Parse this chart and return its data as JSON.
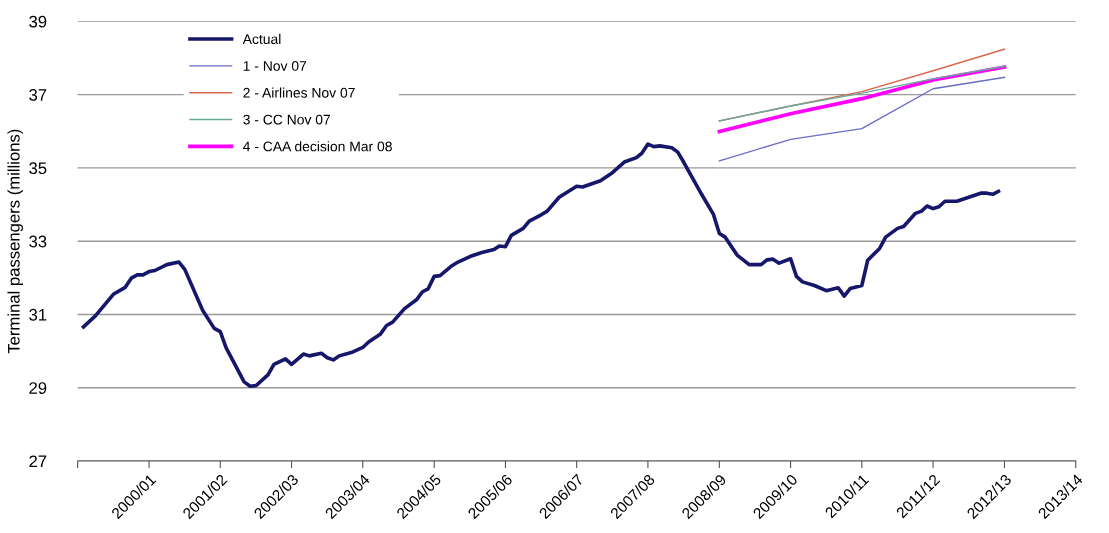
{
  "chart_data": {
    "type": "line",
    "ylabel": "Terminal passengers (millions)",
    "xlim": [
      "1999-04",
      "2013-04"
    ],
    "xticks": [
      {
        "value": "1999-04",
        "label": null
      },
      {
        "value": "2000-04",
        "label": "2000/01"
      },
      {
        "value": "2001-04",
        "label": "2001/02"
      },
      {
        "value": "2002-04",
        "label": "2002/03"
      },
      {
        "value": "2003-04",
        "label": "2003/04"
      },
      {
        "value": "2004-04",
        "label": "2004/05"
      },
      {
        "value": "2005-04",
        "label": "2005/06"
      },
      {
        "value": "2006-04",
        "label": "2006/07"
      },
      {
        "value": "2007-04",
        "label": "2007/08"
      },
      {
        "value": "2008-04",
        "label": "2008/09"
      },
      {
        "value": "2009-04",
        "label": "2009/10"
      },
      {
        "value": "2010-04",
        "label": "2010/11"
      },
      {
        "value": "2011-04",
        "label": "2011/12"
      },
      {
        "value": "2012-04",
        "label": "2012/13"
      },
      {
        "value": "2013-04",
        "label": "2013/14"
      }
    ],
    "ylim": [
      27,
      39
    ],
    "yticks": [
      27,
      29,
      31,
      33,
      35,
      37,
      39
    ],
    "grid": "y",
    "legend": "top left",
    "marker": "none",
    "line_style": "solid",
    "series": [
      {
        "name": "Actual",
        "color": "#16166b",
        "x": [
          "1999-05",
          "1999-07",
          "1999-10",
          "1999-12",
          "2000-01",
          "2000-02",
          "2000-03",
          "2000-04",
          "2000-05",
          "2000-07",
          "2000-09",
          "2000-10",
          "2001-01",
          "2001-03",
          "2001-04",
          "2001-05",
          "2001-08",
          "2001-09",
          "2001-10",
          "2001-12",
          "2002-01",
          "2002-03",
          "2002-04",
          "2002-06",
          "2002-07",
          "2002-09",
          "2002-10",
          "2002-11",
          "2002-12",
          "2003-02",
          "2003-04",
          "2003-05",
          "2003-07",
          "2003-08",
          "2003-09",
          "2003-11",
          "2004-01",
          "2004-02",
          "2004-03",
          "2004-04",
          "2004-05",
          "2004-07",
          "2004-08",
          "2004-10",
          "2004-12",
          "2005-02",
          "2005-03",
          "2005-04",
          "2005-05",
          "2005-07",
          "2005-08",
          "2005-10",
          "2005-11",
          "2006-01",
          "2006-04",
          "2006-05",
          "2006-08",
          "2006-10",
          "2006-12",
          "2007-02",
          "2007-03",
          "2007-04",
          "2007-05",
          "2007-06",
          "2007-08",
          "2007-09",
          "2007-10",
          "2008-01",
          "2008-03",
          "2008-04",
          "2008-05",
          "2008-07",
          "2008-09",
          "2008-11",
          "2008-12",
          "2009-01",
          "2009-02",
          "2009-04",
          "2009-05",
          "2009-06",
          "2009-08",
          "2009-10",
          "2009-12",
          "2010-01",
          "2010-02",
          "2010-04",
          "2010-05",
          "2010-07",
          "2010-08",
          "2010-10",
          "2010-11",
          "2011-01",
          "2011-02",
          "2011-03",
          "2011-04",
          "2011-05",
          "2011-06",
          "2011-08",
          "2011-12",
          "2012-01",
          "2012-02",
          "2012-03"
        ],
        "values": [
          30.66,
          30.96,
          31.55,
          31.74,
          31.99,
          32.08,
          32.08,
          32.17,
          32.2,
          32.36,
          32.43,
          32.23,
          31.11,
          30.62,
          30.53,
          30.09,
          29.16,
          29.04,
          29.06,
          29.35,
          29.64,
          29.79,
          29.64,
          29.92,
          29.87,
          29.94,
          29.82,
          29.76,
          29.87,
          29.96,
          30.1,
          30.25,
          30.47,
          30.7,
          30.79,
          31.16,
          31.4,
          31.62,
          31.7,
          32.04,
          32.06,
          32.33,
          32.43,
          32.58,
          32.69,
          32.77,
          32.87,
          32.85,
          33.16,
          33.35,
          33.55,
          33.72,
          33.82,
          34.2,
          34.5,
          34.48,
          34.65,
          34.87,
          35.16,
          35.28,
          35.4,
          35.65,
          35.58,
          35.6,
          35.55,
          35.43,
          35.16,
          34.28,
          33.74,
          33.21,
          33.11,
          32.62,
          32.36,
          32.36,
          32.49,
          32.51,
          32.4,
          32.52,
          32.04,
          31.89,
          31.79,
          31.65,
          31.73,
          31.5,
          31.71,
          31.79,
          32.48,
          32.8,
          33.11,
          33.35,
          33.4,
          33.76,
          33.82,
          33.96,
          33.89,
          33.94,
          34.09,
          34.09,
          34.31,
          34.31,
          34.28,
          34.36
        ]
      },
      {
        "name": "1 - Nov 07",
        "color": "#6b6bc8",
        "x": [
          "2008-04",
          "2009-04",
          "2010-04",
          "2011-04",
          "2012-04"
        ],
        "values": [
          35.19,
          35.78,
          36.07,
          37.16,
          37.47
        ]
      },
      {
        "name": "2 - Airlines Nov 07",
        "color": "#d9664d",
        "x": [
          "2008-04",
          "2009-04",
          "2010-04",
          "2011-04",
          "2012-04"
        ],
        "values": [
          36.28,
          36.69,
          37.08,
          37.65,
          38.24
        ]
      },
      {
        "name": "3 - CC Nov 07",
        "color": "#6aa89a",
        "x": [
          "2008-04",
          "2009-04",
          "2010-04",
          "2011-04",
          "2012-04"
        ],
        "values": [
          36.28,
          36.69,
          37.04,
          37.43,
          37.77
        ]
      },
      {
        "name": "4 - CAA decision Mar 08",
        "color": "#ff00ff",
        "x": [
          "2008-04",
          "2009-04",
          "2010-04",
          "2011-04",
          "2012-04"
        ],
        "values": [
          35.99,
          36.48,
          36.89,
          37.4,
          37.75
        ]
      }
    ]
  }
}
